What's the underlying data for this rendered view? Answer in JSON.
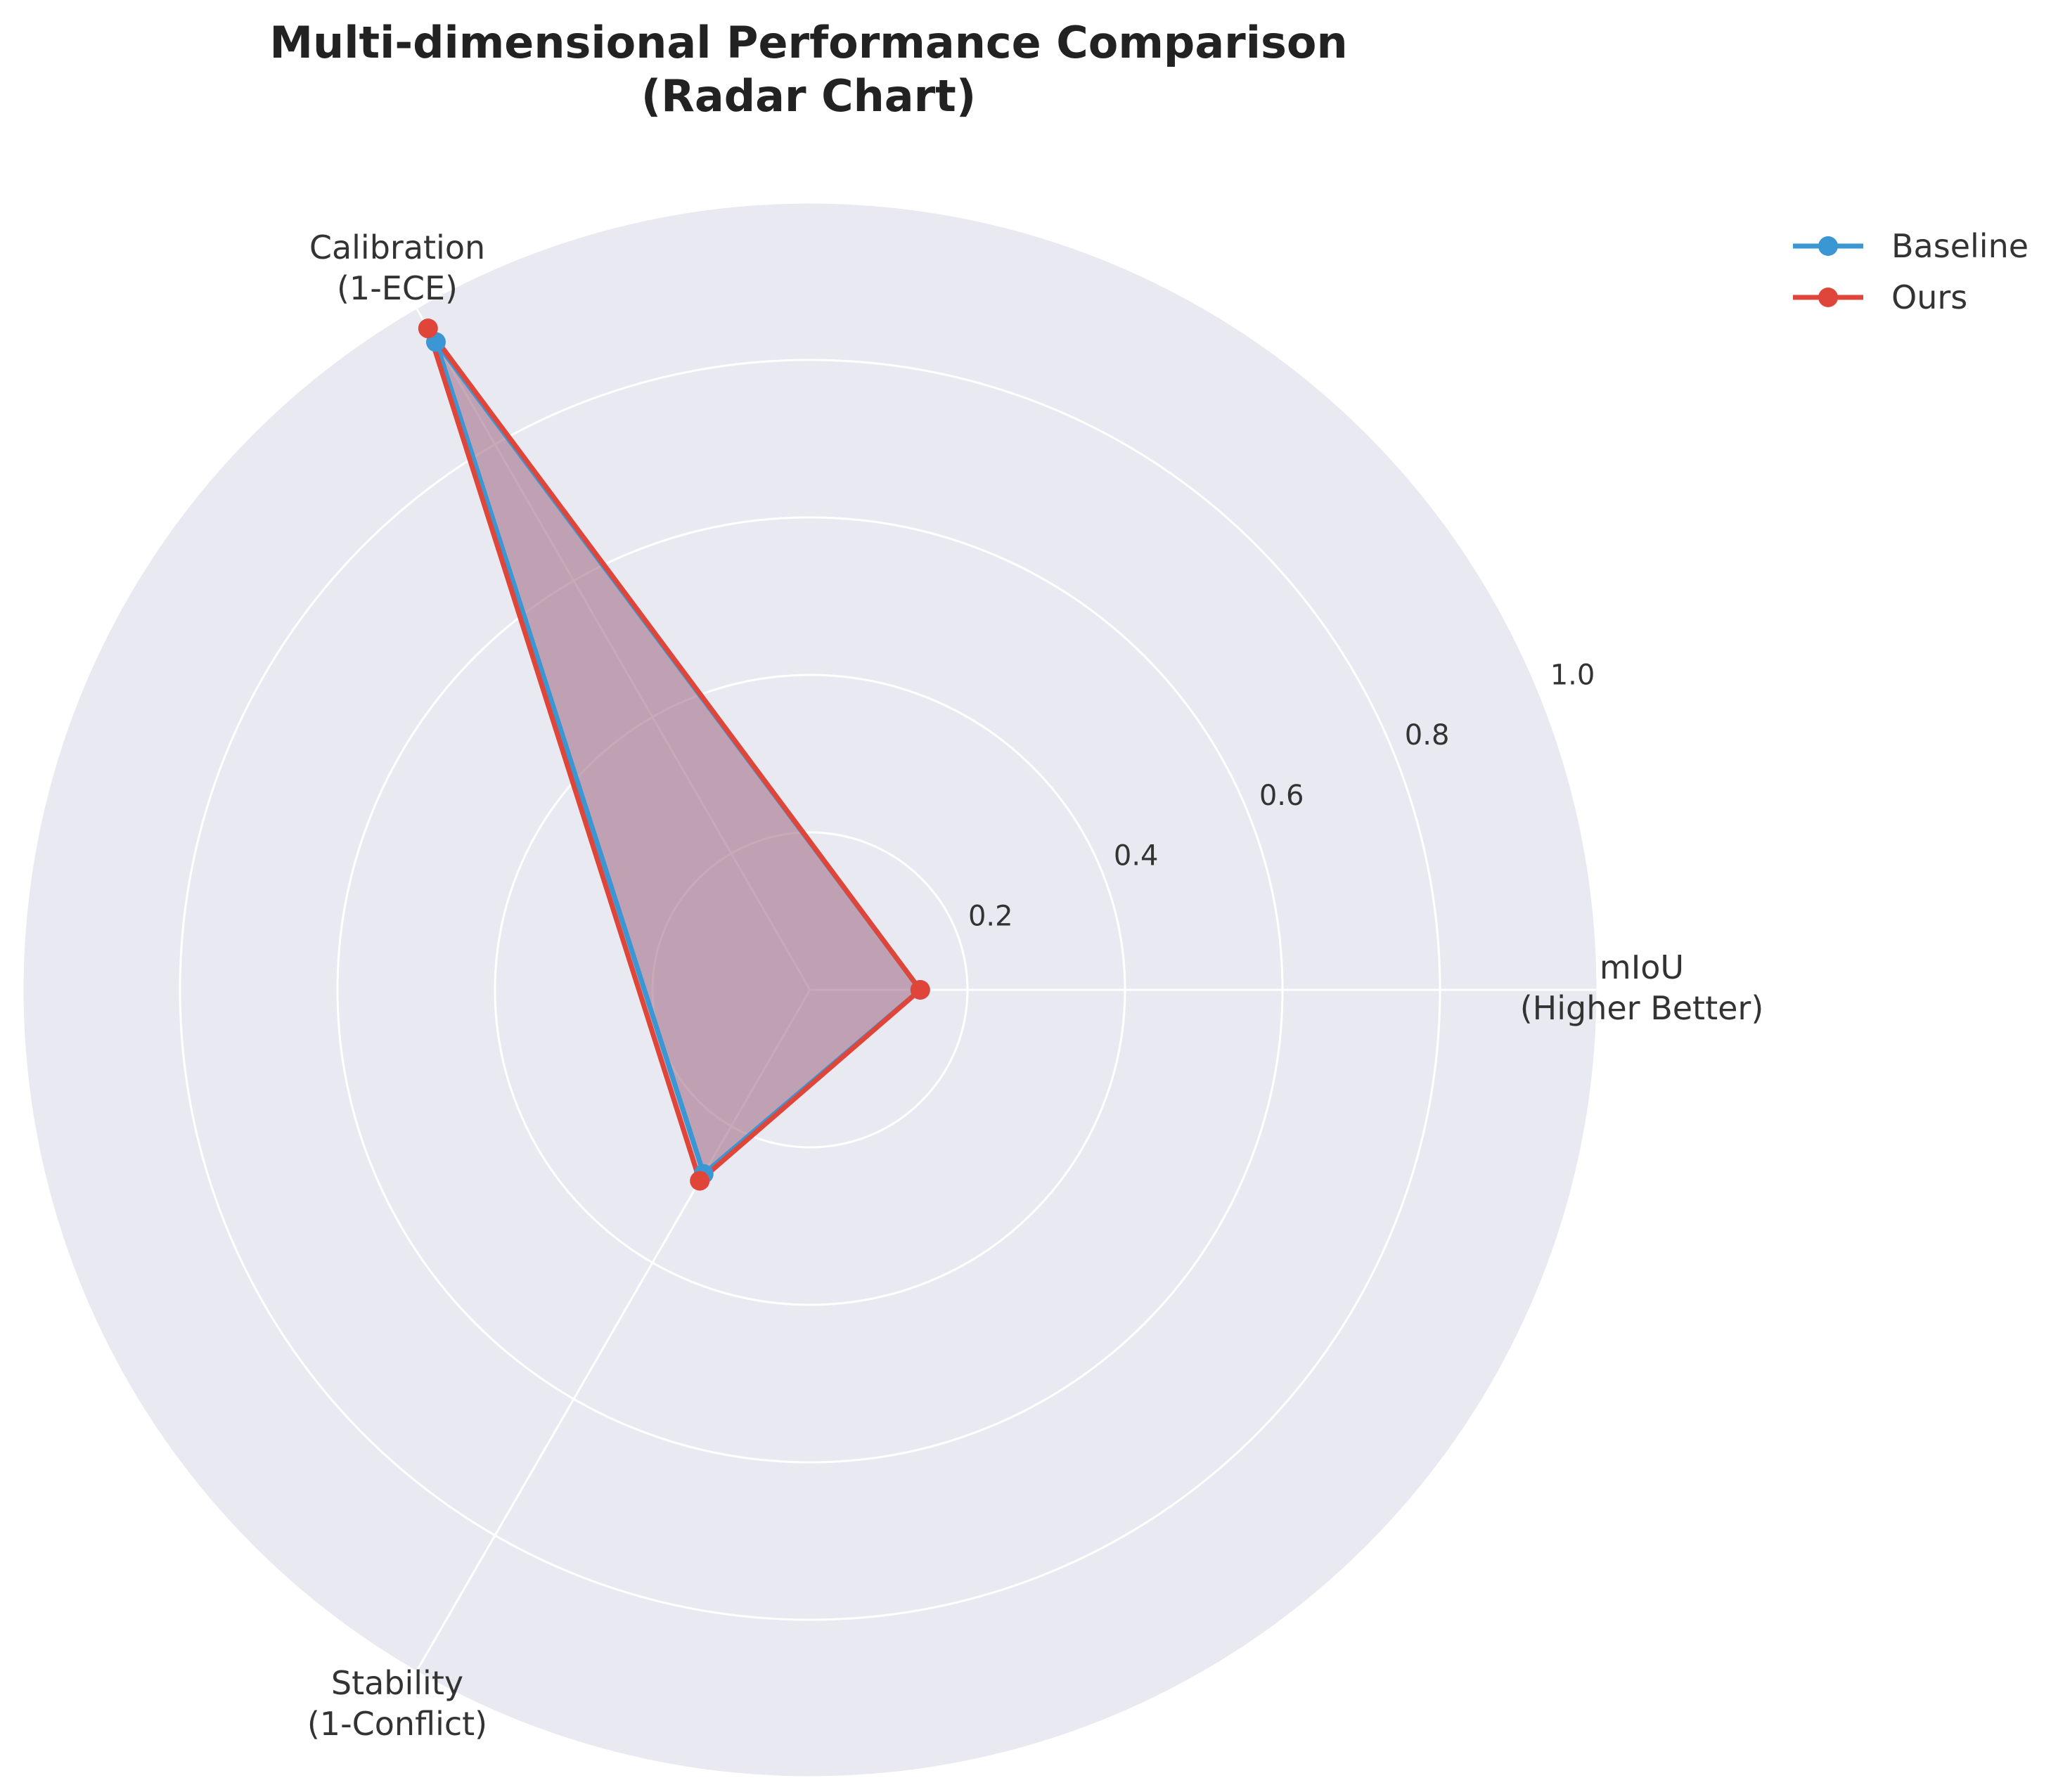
{
  "chart_data": {
    "type": "radar",
    "title": "Multi-dimensional Performance Comparison",
    "subtitle": "(Radar Chart)",
    "axes": [
      {
        "line1": "mIoU",
        "line2": "(Higher Better)"
      },
      {
        "line1": "Calibration",
        "line2": "(1-ECE)"
      },
      {
        "line1": "Stability",
        "line2": "(1-Conflict)"
      }
    ],
    "rlim": [
      0,
      1.0
    ],
    "r_ticks": [
      "0.2",
      "0.4",
      "0.6",
      "0.8",
      "1.0"
    ],
    "r_tick_values": [
      0.2,
      0.4,
      0.6,
      0.8,
      1.0
    ],
    "grid": true,
    "legend_position": "top-right",
    "series": [
      {
        "name": "Baseline",
        "values": [
          0.14,
          0.95,
          0.27
        ],
        "color": "#3a97d4"
      },
      {
        "name": "Ours",
        "values": [
          0.14,
          0.97,
          0.28
        ],
        "color": "#e0453a"
      }
    ],
    "fill_color": "#a87a90",
    "background_color": "#e9e9f1",
    "grid_color": "#ffffff"
  }
}
